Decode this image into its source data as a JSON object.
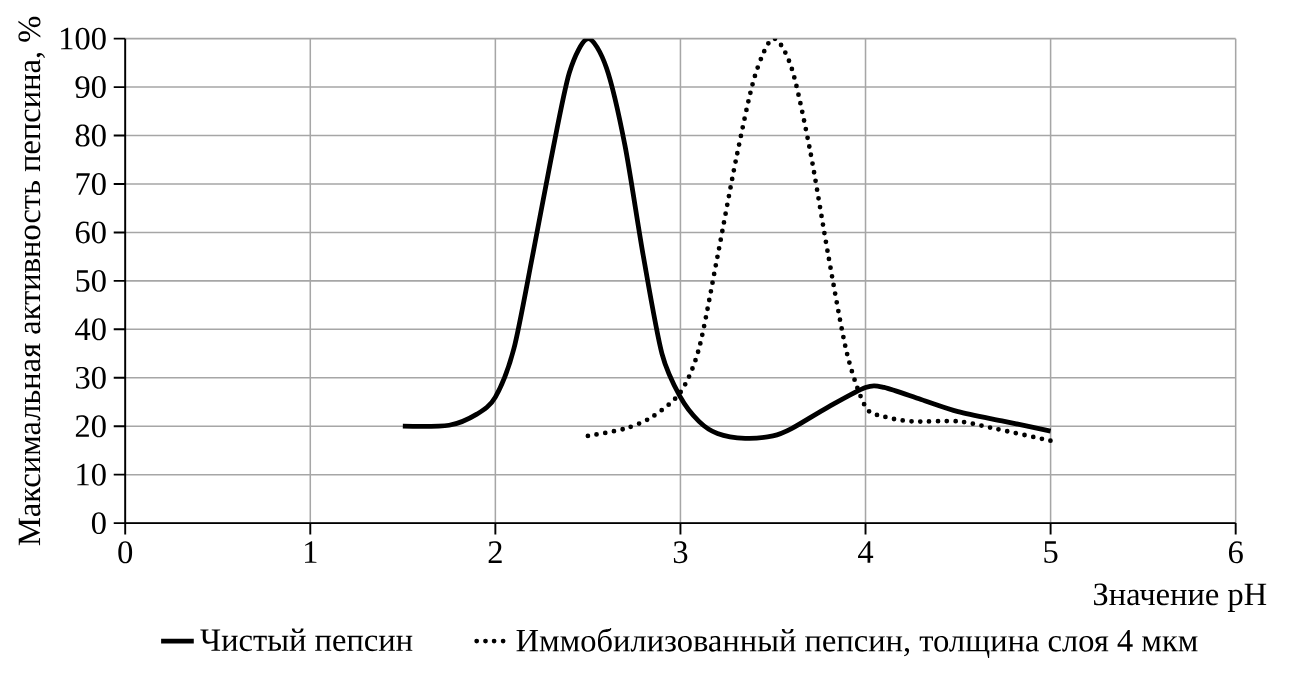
{
  "chart_data": {
    "type": "line",
    "xlabel": "Значение pH",
    "ylabel": "Максимальная активность пепсина, %",
    "xlim": [
      0,
      6
    ],
    "ylim": [
      0,
      100
    ],
    "xticks": [
      0,
      1,
      2,
      3,
      4,
      5,
      6
    ],
    "yticks": [
      0,
      10,
      20,
      30,
      40,
      50,
      60,
      70,
      80,
      90,
      100
    ],
    "grid": true,
    "legend": "bottom",
    "marker": "none",
    "series": [
      {
        "name": "Чистый пепсин",
        "color": "#000000",
        "line_style": "solid",
        "x": [
          1.5,
          1.75,
          1.9,
          2.0,
          2.1,
          2.2,
          2.3,
          2.4,
          2.5,
          2.6,
          2.7,
          2.8,
          2.9,
          3.0,
          3.1,
          3.2,
          3.35,
          3.5,
          3.6,
          3.8,
          4.0,
          4.1,
          4.3,
          4.5,
          4.75,
          5.0
        ],
        "values": [
          20,
          20.2,
          22.5,
          26,
          36,
          55,
          75,
          93,
          100,
          94,
          78,
          55,
          35,
          26,
          21,
          18.5,
          17.5,
          18,
          19.5,
          24,
          28,
          28,
          25.5,
          23,
          21,
          19
        ]
      },
      {
        "name": "Иммобилизованный пепсин, толщина слоя 4 мкм",
        "color": "#000000",
        "line_style": "dotted",
        "x": [
          2.5,
          2.7,
          2.85,
          3.0,
          3.1,
          3.2,
          3.3,
          3.4,
          3.5,
          3.6,
          3.7,
          3.8,
          3.9,
          4.0,
          4.1,
          4.25,
          4.5,
          4.7,
          5.0
        ],
        "values": [
          18,
          19.5,
          22,
          27,
          36,
          55,
          75,
          92,
          100,
          94,
          77,
          55,
          35,
          24,
          22,
          21,
          21,
          19.5,
          17
        ]
      }
    ]
  }
}
